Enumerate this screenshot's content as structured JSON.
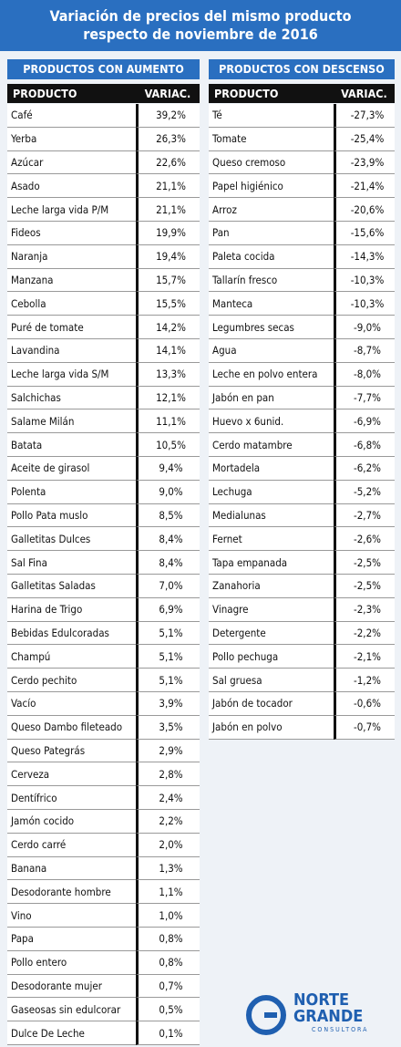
{
  "header": {
    "title_line1": "Variación de precios del mismo producto",
    "title_line2": "respecto de noviembre de 2016"
  },
  "left": {
    "heading": "PRODUCTOS CON AUMENTO",
    "columns": [
      "PRODUCTO",
      "VARIAC."
    ],
    "rows": [
      [
        "Café",
        "39,2%"
      ],
      [
        "Yerba",
        "26,3%"
      ],
      [
        "Azúcar",
        "22,6%"
      ],
      [
        "Asado",
        "21,1%"
      ],
      [
        "Leche larga vida P/M",
        "21,1%"
      ],
      [
        "Fideos",
        "19,9%"
      ],
      [
        "Naranja",
        "19,4%"
      ],
      [
        "Manzana",
        "15,7%"
      ],
      [
        "Cebolla",
        "15,5%"
      ],
      [
        "Puré de tomate",
        "14,2%"
      ],
      [
        "Lavandina",
        "14,1%"
      ],
      [
        "Leche larga vida S/M",
        "13,3%"
      ],
      [
        "Salchichas",
        "12,1%"
      ],
      [
        "Salame Milán",
        "11,1%"
      ],
      [
        "Batata",
        "10,5%"
      ],
      [
        "Aceite de girasol",
        "9,4%"
      ],
      [
        "Polenta",
        "9,0%"
      ],
      [
        "Pollo Pata muslo",
        "8,5%"
      ],
      [
        "Galletitas Dulces",
        "8,4%"
      ],
      [
        "Sal Fina",
        "8,4%"
      ],
      [
        "Galletitas Saladas",
        "7,0%"
      ],
      [
        "Harina de Trigo",
        "6,9%"
      ],
      [
        "Bebidas Edulcoradas",
        "5,1%"
      ],
      [
        "Champú",
        "5,1%"
      ],
      [
        "Cerdo pechito",
        "5,1%"
      ],
      [
        "Vacío",
        "3,9%"
      ],
      [
        "Queso Dambo fileteado",
        "3,5%"
      ],
      [
        "Queso Pategrás",
        "2,9%"
      ],
      [
        "Cerveza",
        "2,8%"
      ],
      [
        "Dentífrico",
        "2,4%"
      ],
      [
        "Jamón cocido",
        "2,2%"
      ],
      [
        "Cerdo carré",
        "2,0%"
      ],
      [
        "Banana",
        "1,3%"
      ],
      [
        "Desodorante hombre",
        "1,1%"
      ],
      [
        "Vino",
        "1,0%"
      ],
      [
        "Papa",
        "0,8%"
      ],
      [
        "Pollo entero",
        "0,8%"
      ],
      [
        "Desodorante mujer",
        "0,7%"
      ],
      [
        "Gaseosas sin edulcorar",
        "0,5%"
      ],
      [
        "Dulce De Leche",
        "0,1%"
      ]
    ]
  },
  "right": {
    "heading": "PRODUCTOS CON DESCENSO",
    "columns": [
      "PRODUCTO",
      "VARIAC."
    ],
    "rows": [
      [
        "Té",
        "-27,3%"
      ],
      [
        "Tomate",
        "-25,4%"
      ],
      [
        "Queso cremoso",
        "-23,9%"
      ],
      [
        "Papel higiénico",
        "-21,4%"
      ],
      [
        "Arroz",
        "-20,6%"
      ],
      [
        "Pan",
        "-15,6%"
      ],
      [
        "Paleta cocida",
        "-14,3%"
      ],
      [
        "Tallarín fresco",
        "-10,3%"
      ],
      [
        "Manteca",
        "-10,3%"
      ],
      [
        "Legumbres secas",
        "-9,0%"
      ],
      [
        "Agua",
        "-8,7%"
      ],
      [
        "Leche en polvo entera",
        "-8,0%"
      ],
      [
        "Jabón en pan",
        "-7,7%"
      ],
      [
        "Huevo x 6unid.",
        "-6,9%"
      ],
      [
        "Cerdo matambre",
        "-6,8%"
      ],
      [
        "Mortadela",
        "-6,2%"
      ],
      [
        "Lechuga",
        "-5,2%"
      ],
      [
        "Medialunas",
        "-2,7%"
      ],
      [
        "Fernet",
        "-2,6%"
      ],
      [
        "Tapa empanada",
        "-2,5%"
      ],
      [
        "Zanahoria",
        "-2,5%"
      ],
      [
        "Vinagre",
        "-2,3%"
      ],
      [
        "Detergente",
        "-2,2%"
      ],
      [
        "Pollo pechuga",
        "-2,1%"
      ],
      [
        "Sal gruesa",
        "-1,2%"
      ],
      [
        "Jabón de tocador",
        "-0,6%"
      ],
      [
        "Jabón en polvo",
        "-0,7%"
      ]
    ]
  },
  "logo": {
    "line1": "NORTE",
    "line2": "GRANDE",
    "line3": "CONSULTORA"
  }
}
